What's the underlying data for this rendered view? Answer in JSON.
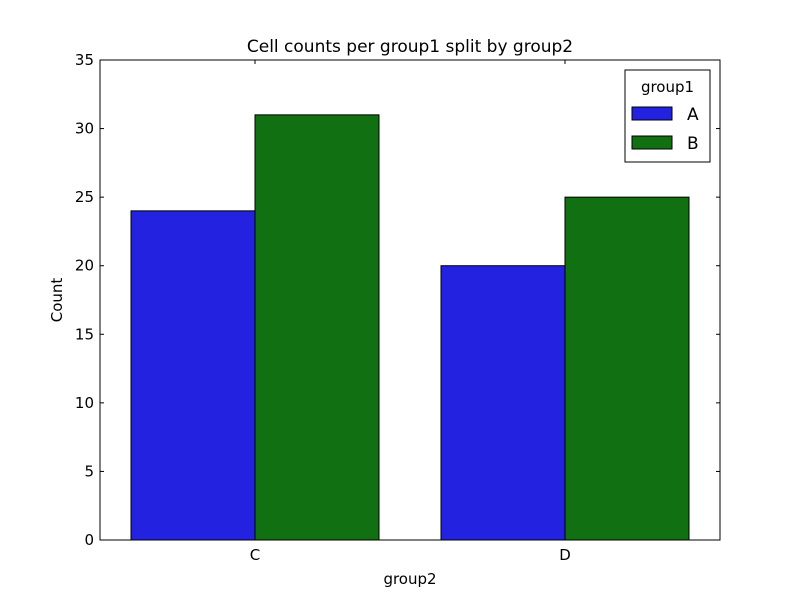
{
  "chart_data": {
    "type": "bar",
    "title": "Cell counts per group1 split by group2",
    "xlabel": "group2",
    "ylabel": "Count",
    "categories": [
      "C",
      "D"
    ],
    "series": [
      {
        "name": "A",
        "values": [
          24,
          20
        ],
        "color": "#2222e0"
      },
      {
        "name": "B",
        "values": [
          31,
          25
        ],
        "color": "#117011"
      }
    ],
    "ylim": [
      0,
      35
    ],
    "yticks": [
      0,
      5,
      10,
      15,
      20,
      25,
      30,
      35
    ],
    "grid": false,
    "legend": {
      "title": "group1",
      "placement": "top-right"
    }
  }
}
